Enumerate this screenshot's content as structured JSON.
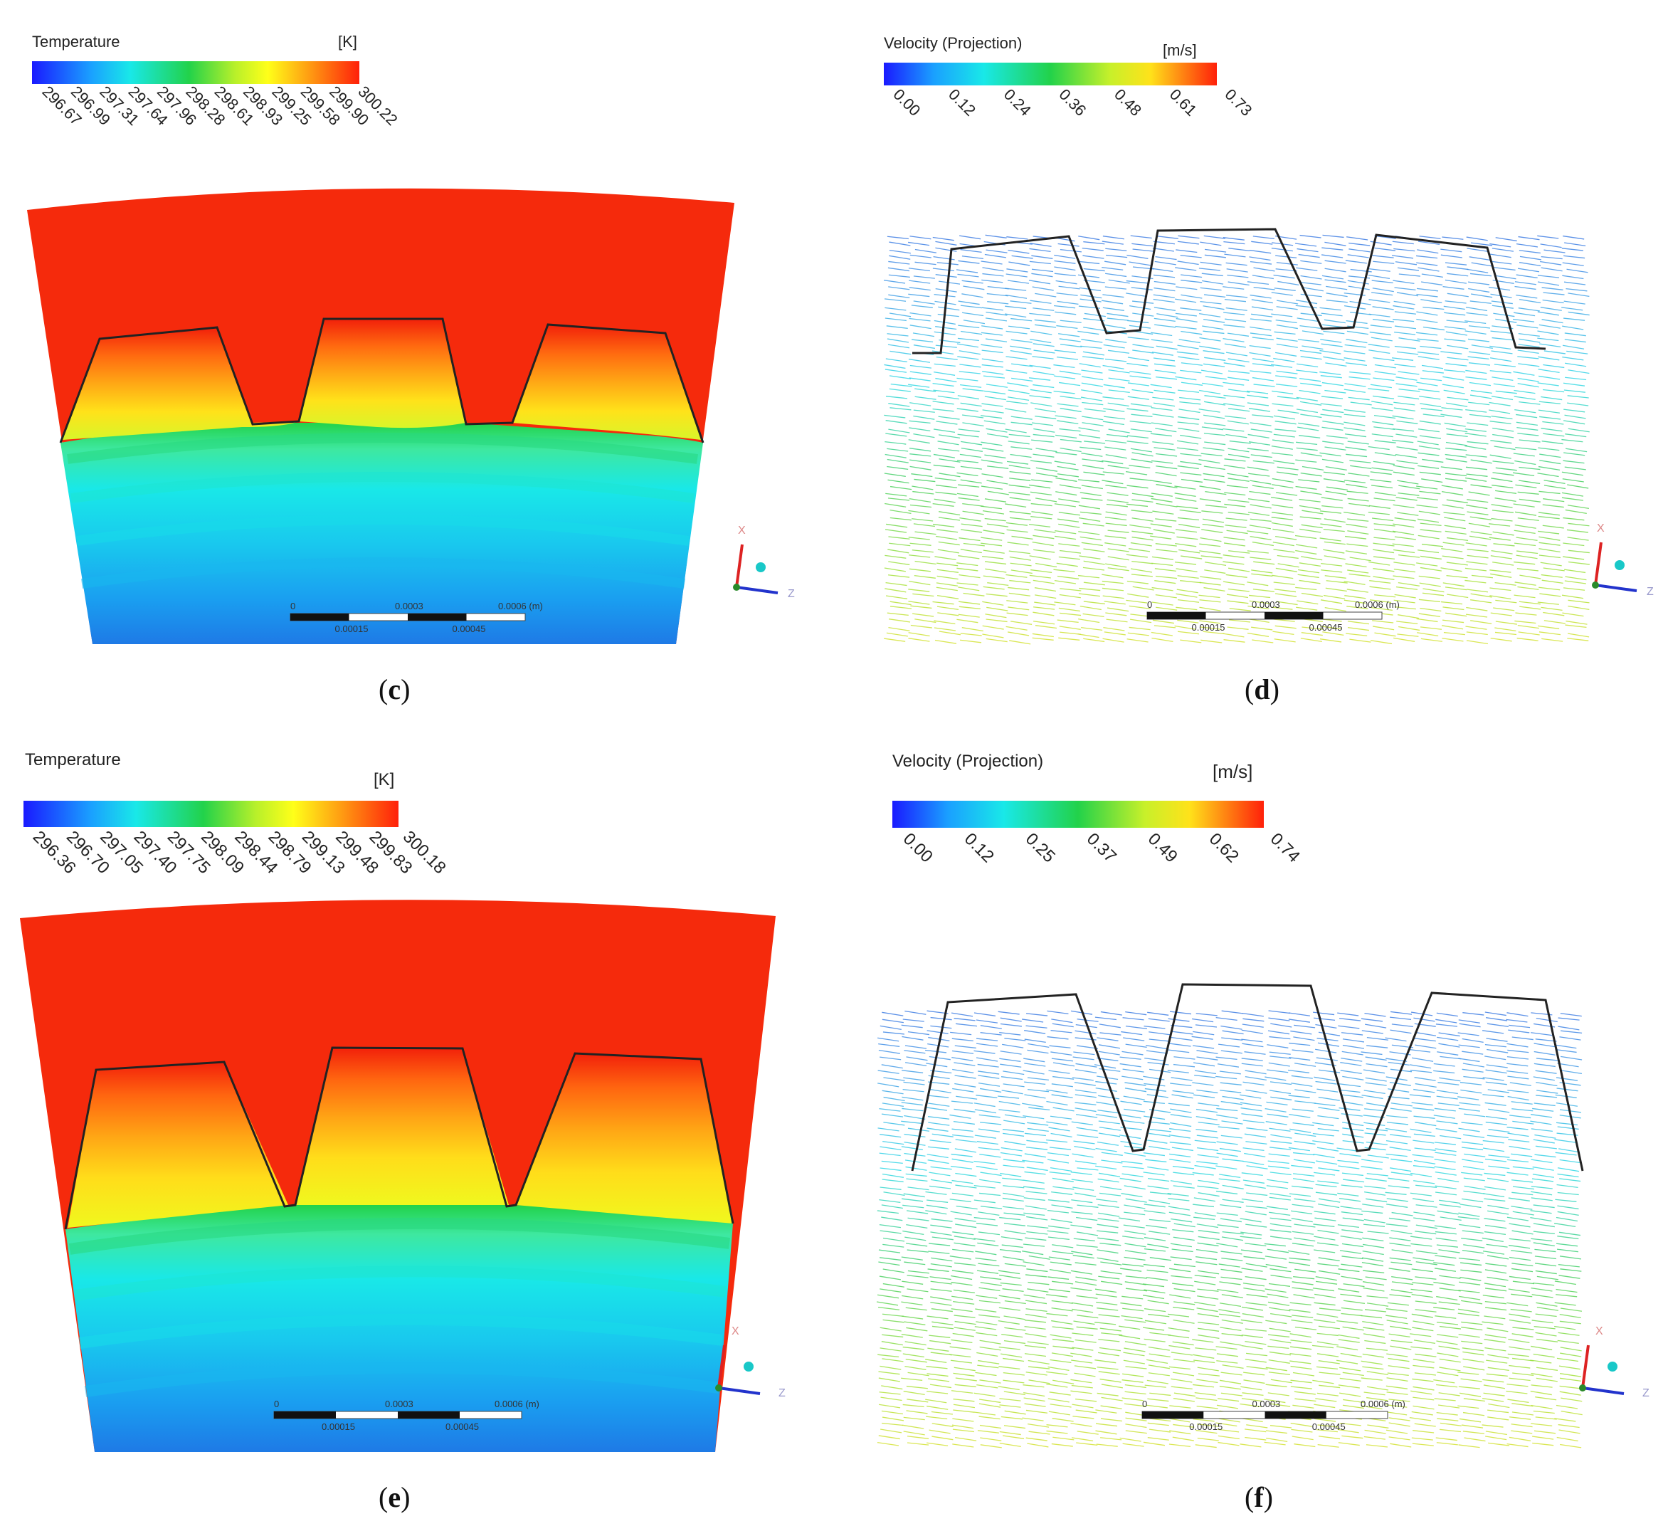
{
  "panels": {
    "c": {
      "caption": "c",
      "legend": {
        "title": "Temperature",
        "unit": "[K]",
        "ticks": [
          "296.67",
          "296.99",
          "297.31",
          "297.64",
          "297.96",
          "298.28",
          "298.61",
          "298.93",
          "299.25",
          "299.58",
          "299.90",
          "300.22"
        ]
      },
      "scale": {
        "top": [
          "0",
          "0.0003",
          "0.0006 (m)"
        ],
        "bottom": [
          "0.00015",
          "0.00045"
        ]
      },
      "axes": {
        "x": "X",
        "z": "Z"
      }
    },
    "d": {
      "caption": "d",
      "legend": {
        "title": "Velocity (Projection)",
        "unit": "[m/s]",
        "ticks": [
          "0.00",
          "0.12",
          "0.24",
          "0.36",
          "0.48",
          "0.61",
          "0.73"
        ]
      },
      "scale": {
        "top": [
          "0",
          "0.0003",
          "0.0006 (m)"
        ],
        "bottom": [
          "0.00015",
          "0.00045"
        ]
      },
      "axes": {
        "x": "X",
        "z": "Z"
      }
    },
    "e": {
      "caption": "e",
      "legend": {
        "title": "Temperature",
        "unit": "[K]",
        "ticks": [
          "296.36",
          "296.70",
          "297.05",
          "297.40",
          "297.75",
          "298.09",
          "298.44",
          "298.79",
          "299.13",
          "299.48",
          "299.83",
          "300.18"
        ]
      },
      "scale": {
        "top": [
          "0",
          "0.0003",
          "0.0006 (m)"
        ],
        "bottom": [
          "0.00015",
          "0.00045"
        ]
      },
      "axes": {
        "x": "X",
        "z": "Z"
      }
    },
    "f": {
      "caption": "f",
      "legend": {
        "title": "Velocity (Projection)",
        "unit": "[m/s]",
        "ticks": [
          "0.00",
          "0.12",
          "0.25",
          "0.37",
          "0.49",
          "0.62",
          "0.74"
        ]
      },
      "scale": {
        "top": [
          "0",
          "0.0003",
          "0.0006 (m)"
        ],
        "bottom": [
          "0.00015",
          "0.00045"
        ]
      },
      "axes": {
        "x": "X",
        "z": "Z"
      }
    }
  },
  "colors": {
    "band_cold": "#1e6fe6",
    "band_mid": "#1fe0e8",
    "band_interface": "#22d24a",
    "hot": "#f52a0c",
    "tooth_outline": "#222222"
  },
  "icons": {
    "triad": "coordinate-triad-icon"
  }
}
